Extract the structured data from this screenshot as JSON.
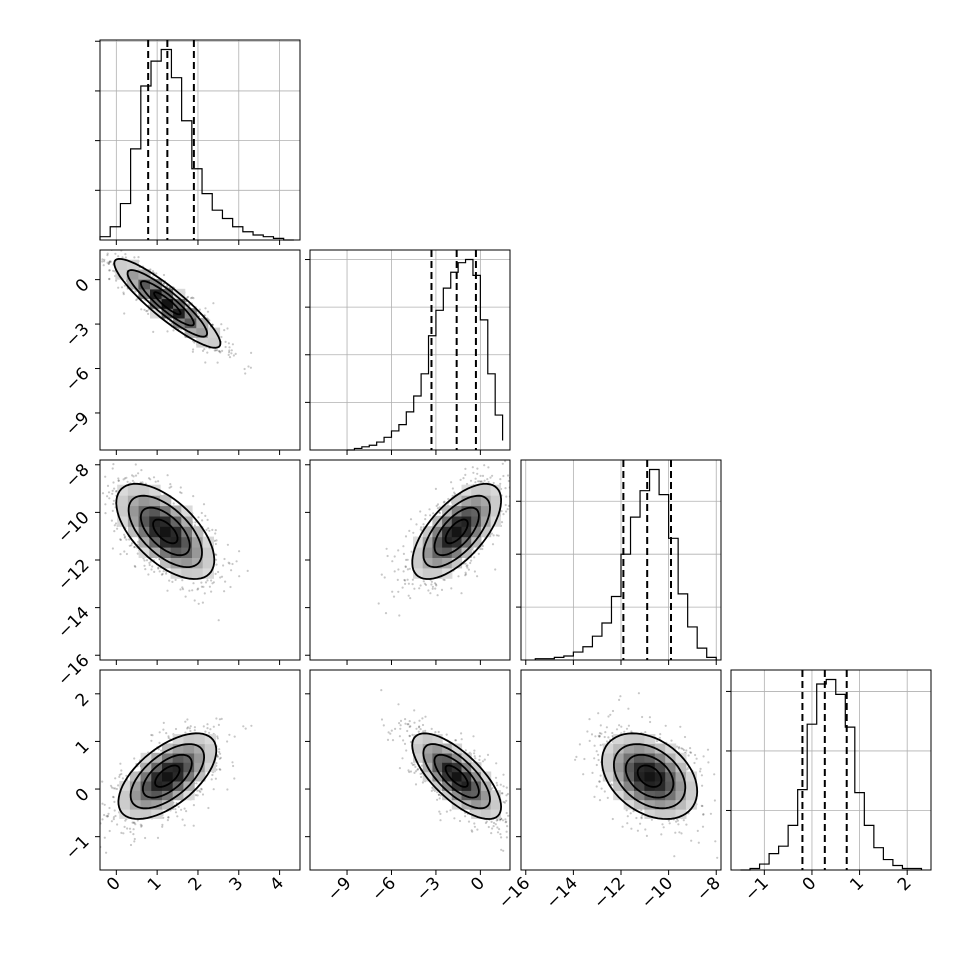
{
  "chart_data": {
    "type": "corner",
    "parameters": [
      {
        "range": [
          -0.4,
          4.5
        ],
        "ticks": [
          0,
          1,
          2,
          3,
          4
        ],
        "tick_labels": [
          "0",
          "1",
          "2",
          "3",
          "4"
        ]
      },
      {
        "range": [
          -11.5,
          2.0
        ],
        "ticks": [
          -9,
          -6,
          -3,
          0
        ],
        "tick_labels": [
          "−9",
          "−6",
          "−3",
          "0"
        ]
      },
      {
        "range": [
          -16.2,
          -7.8
        ],
        "ticks": [
          -16,
          -14,
          -12,
          -10,
          -8
        ],
        "tick_labels": [
          "−16",
          "−14",
          "−12",
          "−10",
          "−8"
        ]
      },
      {
        "range": [
          -1.7,
          2.5
        ],
        "ticks": [
          -1,
          0,
          1,
          2
        ],
        "tick_labels": [
          "−1",
          "0",
          "1",
          "2"
        ]
      }
    ],
    "quantiles": [
      [
        0.78,
        1.25,
        1.9
      ],
      [
        -3.3,
        -1.6,
        -0.3
      ],
      [
        -11.9,
        -10.9,
        -9.9
      ],
      [
        -0.2,
        0.27,
        0.73
      ]
    ],
    "histograms": [
      {
        "edges": [
          -0.4,
          -0.15,
          0.1,
          0.35,
          0.6,
          0.85,
          1.1,
          1.35,
          1.6,
          1.85,
          2.1,
          2.35,
          2.6,
          2.85,
          3.1,
          3.35,
          3.6,
          3.85,
          4.1,
          4.35
        ],
        "counts": [
          2,
          8,
          22,
          55,
          93,
          108,
          115,
          98,
          72,
          43,
          28,
          18,
          13,
          8,
          5,
          3,
          2,
          1,
          0
        ]
      },
      {
        "edges": [
          -9.0,
          -8.5,
          -8.0,
          -7.5,
          -7.0,
          -6.5,
          -6.0,
          -5.5,
          -5.0,
          -4.5,
          -4.0,
          -3.5,
          -3.0,
          -2.5,
          -2.0,
          -1.5,
          -1.0,
          -0.5,
          0.0,
          0.5,
          1.0,
          1.5
        ],
        "counts": [
          0,
          1,
          2,
          3,
          5,
          8,
          12,
          16,
          24,
          34,
          48,
          72,
          88,
          102,
          112,
          118,
          120,
          110,
          82,
          48,
          22,
          6
        ]
      },
      {
        "edges": [
          -15.6,
          -15.2,
          -14.8,
          -14.4,
          -14.0,
          -13.6,
          -13.2,
          -12.8,
          -12.4,
          -12.0,
          -11.6,
          -11.2,
          -10.8,
          -10.4,
          -10.0,
          -9.6,
          -9.2,
          -8.8,
          -8.4,
          -8.0
        ],
        "counts": [
          1,
          1,
          2,
          3,
          6,
          10,
          18,
          28,
          48,
          80,
          108,
          128,
          144,
          125,
          92,
          50,
          25,
          9,
          2
        ]
      },
      {
        "edges": [
          -1.5,
          -1.3,
          -1.1,
          -0.9,
          -0.7,
          -0.5,
          -0.3,
          -0.1,
          0.1,
          0.3,
          0.5,
          0.7,
          0.9,
          1.1,
          1.3,
          1.5,
          1.7,
          1.9,
          2.1,
          2.3
        ],
        "counts": [
          0,
          1,
          4,
          11,
          16,
          30,
          54,
          98,
          125,
          128,
          118,
          96,
          52,
          30,
          15,
          7,
          3,
          1,
          1
        ]
      }
    ],
    "pairs": [
      {
        "x": 0,
        "y": 1,
        "mean": [
          1.25,
          -1.6
        ],
        "sd": [
          0.65,
          1.5
        ],
        "rho": -0.9
      },
      {
        "x": 0,
        "y": 2,
        "mean": [
          1.2,
          -10.8
        ],
        "sd": [
          0.6,
          1.0
        ],
        "rho": -0.6
      },
      {
        "x": 1,
        "y": 2,
        "mean": [
          -1.6,
          -10.8
        ],
        "sd": [
          1.5,
          1.0
        ],
        "rho": 0.65
      },
      {
        "x": 0,
        "y": 3,
        "mean": [
          1.25,
          0.27
        ],
        "sd": [
          0.6,
          0.45
        ],
        "rho": 0.6
      },
      {
        "x": 1,
        "y": 3,
        "mean": [
          -1.6,
          0.27
        ],
        "sd": [
          1.5,
          0.45
        ],
        "rho": -0.72
      },
      {
        "x": 2,
        "y": 3,
        "mean": [
          -10.8,
          0.27
        ],
        "sd": [
          1.0,
          0.45
        ],
        "rho": -0.35
      }
    ],
    "contour_levels_sigma": [
      0.5,
      1.0,
      1.5,
      2.0
    ],
    "grid": true,
    "colors": {
      "data": "#000000",
      "grid": "#b0b0b0",
      "density": "#000000"
    }
  }
}
